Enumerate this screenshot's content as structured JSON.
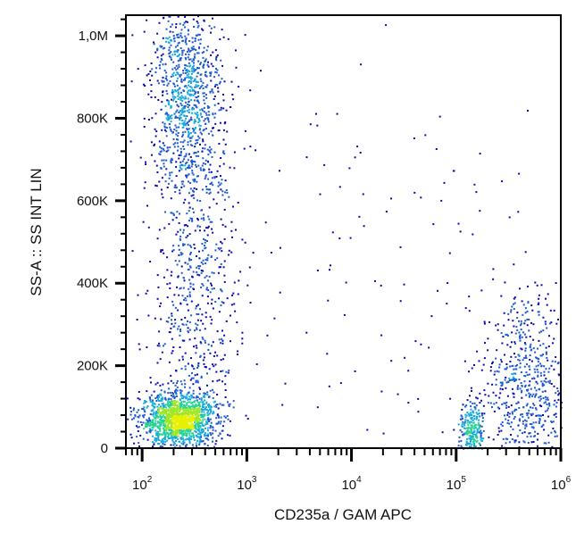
{
  "chart_data": {
    "type": "scatter",
    "subtype": "flow-cytometry density dot plot",
    "xlabel": "CD235a  / GAM APC",
    "ylabel": "SS-A :: SS INT LIN",
    "x_scale": "log",
    "xlim": [
      70,
      1000000
    ],
    "x_ticks": [
      {
        "value": 100,
        "base": "10",
        "exp": "2"
      },
      {
        "value": 1000,
        "base": "10",
        "exp": "3"
      },
      {
        "value": 10000,
        "base": "10",
        "exp": "4"
      },
      {
        "value": 100000,
        "base": "10",
        "exp": "5"
      },
      {
        "value": 1000000,
        "base": "10",
        "exp": "6"
      }
    ],
    "y_scale": "linear",
    "ylim": [
      0,
      1050000
    ],
    "y_ticks": [
      {
        "value": 0,
        "label": "0"
      },
      {
        "value": 200000,
        "label": "200K"
      },
      {
        "value": 400000,
        "label": "400K"
      },
      {
        "value": 600000,
        "label": "600K"
      },
      {
        "value": 800000,
        "label": "800K"
      },
      {
        "value": 1000000,
        "label": "1,0M"
      }
    ],
    "density_colors": [
      "#0a0ab4",
      "#1e5ad2",
      "#19aadc",
      "#28d296",
      "#a0e628",
      "#e6f000"
    ],
    "populations": [
      {
        "x_center": 220,
        "x_spread_decades": 0.18,
        "y_center": 70000,
        "y_spread": 32000,
        "points": 1400
      },
      {
        "x_center": 260,
        "x_spread_decades": 0.17,
        "y_center": 860000,
        "y_spread": 120000,
        "points": 900
      },
      {
        "x_center": 320,
        "x_spread_decades": 0.2,
        "y_center": 400000,
        "y_spread": 220000,
        "points": 650
      },
      {
        "x_center": 140000,
        "x_spread_decades": 0.06,
        "y_center": 40000,
        "y_spread": 35000,
        "points": 260
      },
      {
        "x_center": 450000,
        "x_spread_decades": 0.22,
        "y_center": 150000,
        "y_spread": 120000,
        "points": 650
      },
      {
        "x_center": 5000,
        "x_spread_decades": 1.4,
        "y_center": 450000,
        "y_spread": 300000,
        "points": 160
      }
    ]
  }
}
